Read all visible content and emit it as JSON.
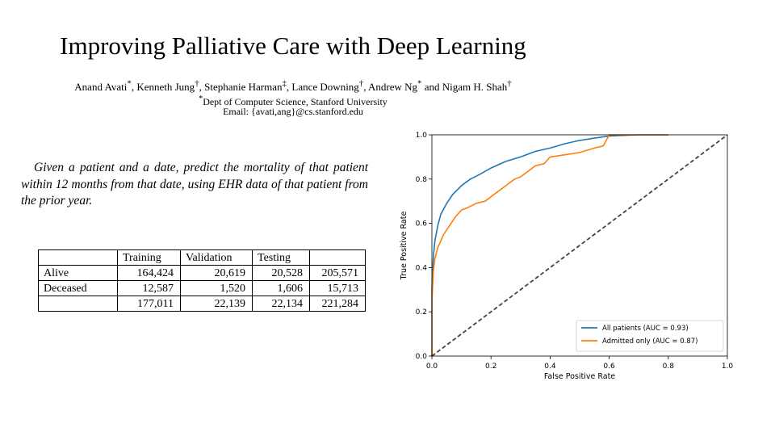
{
  "header": {
    "title": "Improving Palliative Care with Deep Learning",
    "authors": [
      {
        "name": "Anand Avati",
        "mark": "*",
        "sep": ", "
      },
      {
        "name": "Kenneth Jung",
        "mark": "†",
        "sep": ", "
      },
      {
        "name": "Stephanie Harman",
        "mark": "‡",
        "sep": ", "
      },
      {
        "name": "Lance Downing",
        "mark": "†",
        "sep": ", "
      },
      {
        "name": "Andrew Ng",
        "mark": "*",
        "sep": " and "
      },
      {
        "name": "Nigam H. Shah",
        "mark": "†",
        "sep": ""
      }
    ],
    "affiliation_mark": "*",
    "affiliation": "Dept of Computer Science, Stanford University",
    "email": "Email: {avati,ang}@cs.stanford.edu"
  },
  "task_statement": "Given a patient and a date, predict the mortality of that patient within 12 months from that date, using EHR data of that patient from the prior year.",
  "table": {
    "columns": [
      "",
      "Training",
      "Validation",
      "Testing",
      ""
    ],
    "rows": [
      [
        "Alive",
        "164,424",
        "20,619",
        "20,528",
        "205,571"
      ],
      [
        "Deceased",
        "12,587",
        "1,520",
        "1,606",
        "15,713"
      ],
      [
        "",
        "177,011",
        "22,139",
        "22,134",
        "221,284"
      ]
    ]
  },
  "chart_data": {
    "type": "line",
    "xlabel": "False Positive Rate",
    "ylabel": "True Positive Rate",
    "xlim": [
      0.0,
      1.0
    ],
    "ylim": [
      0.0,
      1.0
    ],
    "xticks": [
      "0.0",
      "0.2",
      "0.4",
      "0.6",
      "0.8",
      "1.0"
    ],
    "yticks": [
      "0.0",
      "0.2",
      "0.4",
      "0.6",
      "0.8",
      "1.0"
    ],
    "legend_position": "bottom-right",
    "grid": false,
    "series": [
      {
        "name": "All patients (AUC = 0.93)",
        "color": "#1f77b4",
        "x": [
          0.0,
          0.0,
          0.005,
          0.01,
          0.02,
          0.03,
          0.05,
          0.07,
          0.1,
          0.13,
          0.16,
          0.2,
          0.25,
          0.3,
          0.35,
          0.4,
          0.45,
          0.5,
          0.55,
          0.6,
          0.7,
          0.8
        ],
        "y": [
          0.0,
          0.3,
          0.45,
          0.52,
          0.59,
          0.64,
          0.69,
          0.73,
          0.77,
          0.8,
          0.82,
          0.85,
          0.88,
          0.9,
          0.925,
          0.94,
          0.96,
          0.975,
          0.985,
          0.995,
          1.0,
          1.0
        ]
      },
      {
        "name": "Admitted only (AUC = 0.87)",
        "color": "#ff7f0e",
        "x": [
          0.0,
          0.0,
          0.005,
          0.01,
          0.02,
          0.03,
          0.04,
          0.05,
          0.07,
          0.08,
          0.1,
          0.12,
          0.15,
          0.18,
          0.2,
          0.22,
          0.25,
          0.28,
          0.3,
          0.32,
          0.35,
          0.38,
          0.4,
          0.45,
          0.5,
          0.55,
          0.58,
          0.6,
          0.7,
          0.8
        ],
        "y": [
          0.0,
          0.25,
          0.38,
          0.44,
          0.49,
          0.52,
          0.55,
          0.57,
          0.61,
          0.63,
          0.66,
          0.67,
          0.69,
          0.7,
          0.72,
          0.74,
          0.77,
          0.8,
          0.81,
          0.83,
          0.86,
          0.87,
          0.9,
          0.91,
          0.92,
          0.94,
          0.95,
          1.0,
          1.0,
          1.0
        ]
      },
      {
        "name": "",
        "color": "#444444",
        "dashed": true,
        "x": [
          0.0,
          1.0
        ],
        "y": [
          0.0,
          1.0
        ]
      }
    ]
  }
}
